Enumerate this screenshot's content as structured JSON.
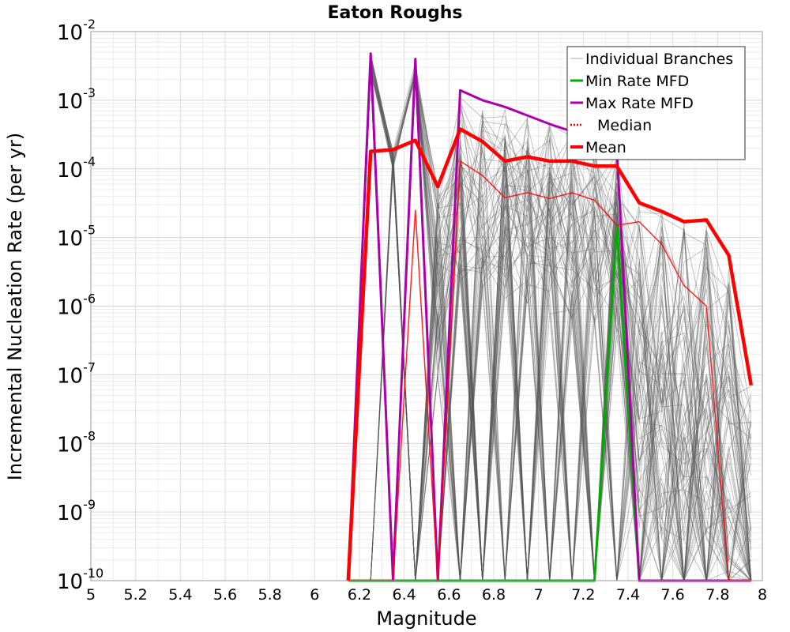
{
  "chart_data": {
    "type": "line",
    "title": "Eaton Roughs",
    "xlabel": "Magnitude",
    "ylabel": "Incremental Nucleation Rate (per yr)",
    "xlim": [
      5,
      8
    ],
    "ylim_log10": [
      -10,
      -2
    ],
    "y_scale": "log",
    "grid": true,
    "legend_position": "top-right",
    "x_ticks": [
      "5",
      "5.2",
      "5.4",
      "5.6",
      "5.8",
      "6",
      "6.2",
      "6.4",
      "6.6",
      "6.8",
      "7",
      "7.2",
      "7.4",
      "7.6",
      "7.8",
      "8"
    ],
    "y_ticks": [
      {
        "base": "10",
        "exp": "-2"
      },
      {
        "base": "10",
        "exp": "-3"
      },
      {
        "base": "10",
        "exp": "-4"
      },
      {
        "base": "10",
        "exp": "-5"
      },
      {
        "base": "10",
        "exp": "-6"
      },
      {
        "base": "10",
        "exp": "-7"
      },
      {
        "base": "10",
        "exp": "-8"
      },
      {
        "base": "10",
        "exp": "-9"
      },
      {
        "base": "10",
        "exp": "-10"
      }
    ],
    "x": [
      6.15,
      6.25,
      6.35,
      6.45,
      6.55,
      6.65,
      6.75,
      6.85,
      6.95,
      7.05,
      7.15,
      7.25,
      7.35,
      7.45,
      7.55,
      7.65,
      7.75,
      7.85,
      7.95
    ],
    "series": [
      {
        "name": "Individual Branches",
        "color": "#555555",
        "style": "thin",
        "values": null
      },
      {
        "name": "Min Rate MFD",
        "color": "#00aa00",
        "style": "solid",
        "values": [
          1e-10,
          1e-10,
          1e-10,
          1e-10,
          1e-10,
          1e-10,
          1e-10,
          1e-10,
          1e-10,
          1e-10,
          1e-10,
          1e-10,
          1.5e-05,
          1e-10,
          1e-10,
          1e-10,
          1e-10,
          1e-10,
          1e-10
        ]
      },
      {
        "name": "Max Rate MFD",
        "color": "#aa00aa",
        "style": "solid",
        "values": [
          1e-10,
          0.0048,
          1e-10,
          0.004,
          1e-10,
          0.0014,
          0.001,
          0.0008,
          0.0006,
          0.00045,
          0.00035,
          0.00027,
          0.0002,
          1e-10,
          1e-10,
          1e-10,
          1e-10,
          1e-10,
          1e-10
        ]
      },
      {
        "name": "Median",
        "color": "#ff0000",
        "style": "dotted",
        "values": [
          1e-10,
          1e-10,
          1e-10,
          2.5e-05,
          1e-10,
          0.00013,
          8e-05,
          3.8e-05,
          4.5e-05,
          3.7e-05,
          4.5e-05,
          3.5e-05,
          1.5e-05,
          1.7e-05,
          8e-06,
          2e-06,
          1e-06,
          1e-10,
          1e-10
        ]
      },
      {
        "name": "Mean",
        "color": "#ff0000",
        "style": "thick",
        "values": [
          1e-10,
          0.00018,
          0.00019,
          0.00026,
          5.5e-05,
          0.00038,
          0.00025,
          0.00013,
          0.00015,
          0.00013,
          0.00013,
          0.00011,
          0.00011,
          3.2e-05,
          2.4e-05,
          1.7e-05,
          1.8e-05,
          5.5e-06,
          7e-08
        ]
      }
    ]
  }
}
